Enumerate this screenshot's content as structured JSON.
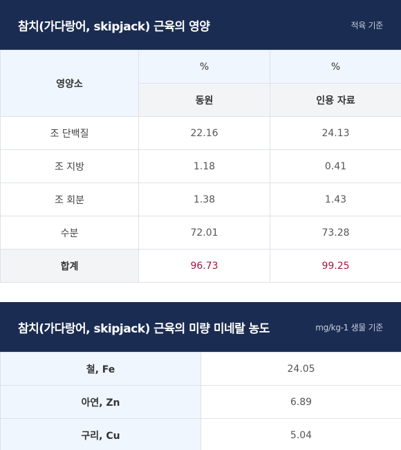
{
  "section1": {
    "title": "참치(가다랑어, skipjack) 근육의 영양",
    "note": "적육 기준",
    "header": {
      "nutrient_label": "영양소",
      "unit_col1": "%",
      "unit_col2": "%",
      "source_col1": "동원",
      "source_col2": "인용 자료"
    },
    "rows": [
      {
        "label": "조 단백질",
        "v1": "22.16",
        "v2": "24.13"
      },
      {
        "label": "조 지방",
        "v1": "1.18",
        "v2": "0.41"
      },
      {
        "label": "조 회분",
        "v1": "1.38",
        "v2": "1.43"
      },
      {
        "label": "수분",
        "v1": "72.01",
        "v2": "73.28"
      }
    ],
    "total": {
      "label": "합계",
      "v1": "96.73",
      "v2": "99.25"
    },
    "colors": {
      "header_bg": "#1b2c52",
      "total_value": "#a8153f"
    }
  },
  "section2": {
    "title": "참치(가다랑어, skipjack) 근육의 미량 미네랄 농도",
    "note": "mg/kg-1 생물 기준",
    "rows": [
      {
        "label": "철, Fe",
        "value": "24.05"
      },
      {
        "label": "아연, Zn",
        "value": "6.89"
      },
      {
        "label": "구리, Cu",
        "value": "5.04"
      }
    ]
  }
}
